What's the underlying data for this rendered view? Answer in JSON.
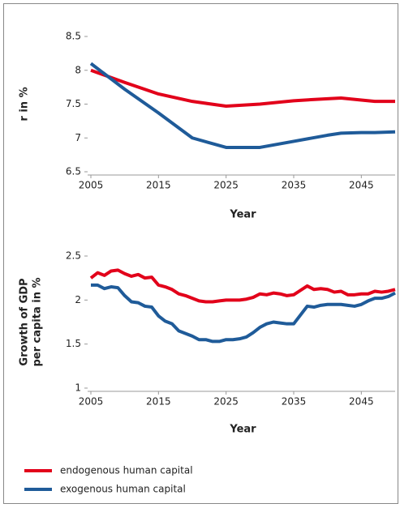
{
  "chart_data": [
    {
      "type": "line",
      "ylabel": "r in %",
      "xlabel": "Year",
      "x": [
        2005,
        2010,
        2015,
        2020,
        2025,
        2030,
        2035,
        2040,
        2042,
        2045,
        2047,
        2050
      ],
      "xlim": [
        2005,
        2050
      ],
      "xticks": [
        2005,
        2015,
        2025,
        2035,
        2045
      ],
      "ylim": [
        6.5,
        8.5
      ],
      "yticks": [
        8.5,
        8,
        7.5,
        7,
        6.5
      ],
      "series": [
        {
          "name": "endogenous human capital",
          "color": "#e2001a",
          "values": [
            8.0,
            7.82,
            7.65,
            7.54,
            7.47,
            7.5,
            7.55,
            7.58,
            7.59,
            7.56,
            7.54,
            7.54
          ]
        },
        {
          "name": "exogenous human capital",
          "color": "#1f5b99",
          "values": [
            8.1,
            7.72,
            7.37,
            7.0,
            6.86,
            6.86,
            6.95,
            7.04,
            7.07,
            7.08,
            7.08,
            7.09
          ]
        }
      ]
    },
    {
      "type": "line",
      "ylabel": [
        "Growth of GDP",
        "per capita in %"
      ],
      "xlabel": "Year",
      "x": [
        2005,
        2006,
        2007,
        2008,
        2009,
        2010,
        2011,
        2012,
        2013,
        2014,
        2015,
        2016,
        2017,
        2018,
        2019,
        2020,
        2021,
        2022,
        2023,
        2024,
        2025,
        2026,
        2027,
        2028,
        2029,
        2030,
        2031,
        2032,
        2033,
        2034,
        2035,
        2036,
        2037,
        2038,
        2039,
        2040,
        2041,
        2042,
        2043,
        2044,
        2045,
        2046,
        2047,
        2048,
        2049,
        2050
      ],
      "xlim": [
        2005,
        2050
      ],
      "xticks": [
        2005,
        2015,
        2025,
        2035,
        2045
      ],
      "ylim": [
        1,
        2.5
      ],
      "yticks": [
        2.5,
        2,
        1.5,
        1
      ],
      "series": [
        {
          "color": "#e2001a",
          "values": [
            2.25,
            2.31,
            2.28,
            2.33,
            2.34,
            2.3,
            2.27,
            2.29,
            2.25,
            2.26,
            2.17,
            2.15,
            2.12,
            2.07,
            2.05,
            2.02,
            1.99,
            1.98,
            1.98,
            1.99,
            2.0,
            2.0,
            2.0,
            2.01,
            2.03,
            2.07,
            2.06,
            2.08,
            2.07,
            2.05,
            2.06,
            2.11,
            2.16,
            2.12,
            2.13,
            2.12,
            2.09,
            2.1,
            2.06,
            2.06,
            2.07,
            2.07,
            2.1,
            2.09,
            2.1,
            2.12
          ]
        },
        {
          "color": "#1f5b99",
          "values": [
            2.17,
            2.17,
            2.13,
            2.15,
            2.14,
            2.05,
            1.98,
            1.97,
            1.93,
            1.92,
            1.82,
            1.76,
            1.73,
            1.65,
            1.62,
            1.59,
            1.55,
            1.55,
            1.53,
            1.53,
            1.55,
            1.55,
            1.56,
            1.58,
            1.63,
            1.69,
            1.73,
            1.75,
            1.74,
            1.73,
            1.73,
            1.83,
            1.93,
            1.92,
            1.94,
            1.95,
            1.95,
            1.95,
            1.94,
            1.93,
            1.95,
            1.99,
            2.02,
            2.02,
            2.04,
            2.08
          ]
        }
      ]
    }
  ]
}
